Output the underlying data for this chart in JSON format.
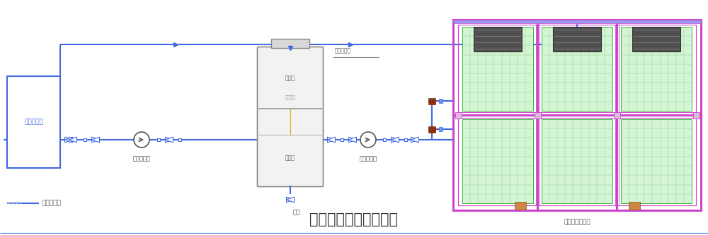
{
  "title": "风冷机组水系统流程图",
  "title_fontsize": 18,
  "title_color": "#333333",
  "bg_color": "#ffffff",
  "line_color": "#4169e1",
  "line_width": 1.5,
  "border_color": "#4169e1",
  "tank_border": "#888888",
  "chiller_frame": "#cc44cc",
  "legend_line": "低温冷冻水",
  "label_cooling_equip": "需降温设备",
  "label_water_tank": "储水器",
  "label_level_ctrl": "液面控制",
  "label_cold_store": "冷储罐",
  "label_tap_water": "自来水补水",
  "label_outer_pump": "外循环水泵",
  "label_inner_pump": "内循环水泵",
  "label_drain": "排水",
  "label_chiller_unit": "风冷式冷冻机組"
}
